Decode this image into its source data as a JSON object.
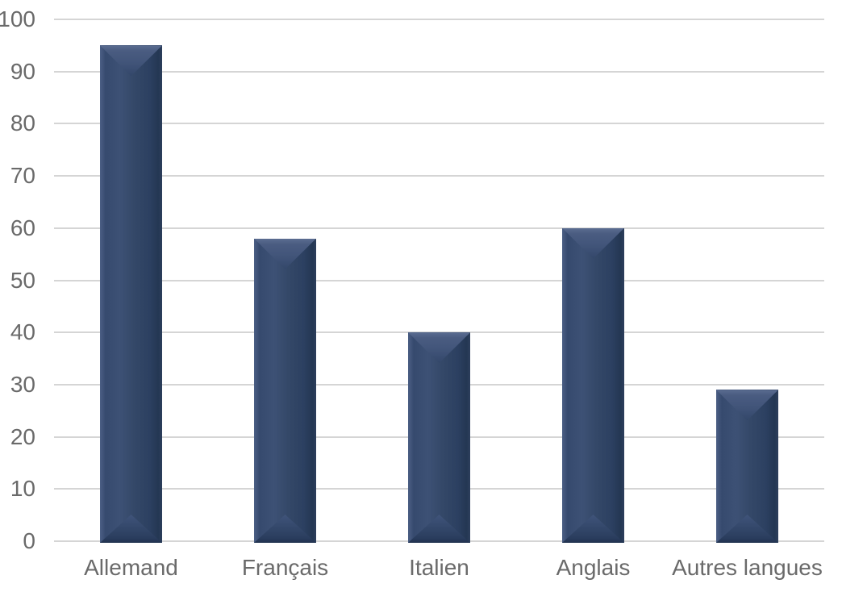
{
  "chart_data": {
    "type": "bar",
    "title": "",
    "xlabel": "",
    "ylabel": "",
    "categories": [
      "Allemand",
      "Français",
      "Italien",
      "Anglais",
      "Autres langues"
    ],
    "values": [
      95,
      58,
      40,
      60,
      29
    ],
    "ylim": [
      0,
      100
    ],
    "yticks": [
      0,
      10,
      20,
      30,
      40,
      50,
      60,
      70,
      80,
      90,
      100
    ],
    "grid": true,
    "legend": false,
    "colors": {
      "bar_light": "#4c5f85",
      "bar_mid": "#344868",
      "bar_dark": "#243753",
      "bar_ridge": "#5b6d91",
      "gridline": "#d5d5d5",
      "label": "#6a6a6a",
      "background": "#ffffff"
    }
  }
}
